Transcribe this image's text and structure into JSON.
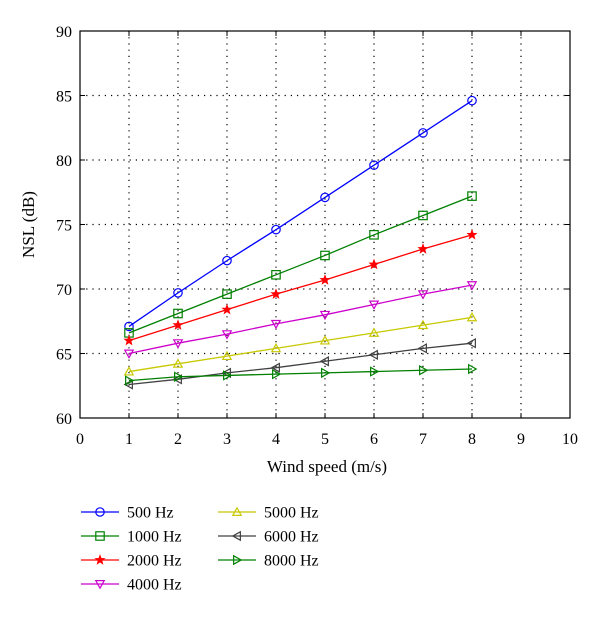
{
  "chart_data": {
    "type": "line",
    "xlabel": "Wind speed (m/s)",
    "ylabel": "NSL (dB)",
    "xlim": [
      0,
      10
    ],
    "ylim": [
      60,
      90
    ],
    "xticks": [
      0,
      1,
      2,
      3,
      4,
      5,
      6,
      7,
      8,
      9,
      10
    ],
    "yticks": [
      60,
      65,
      70,
      75,
      80,
      85,
      90
    ],
    "grid": "dotted",
    "legend_position": "bottom",
    "x": [
      1,
      2,
      3,
      4,
      5,
      6,
      7,
      8
    ],
    "series": [
      {
        "name": "500 Hz",
        "color": "#0000ff",
        "marker": "circle",
        "values": [
          67.1,
          69.7,
          72.2,
          74.6,
          77.1,
          79.6,
          82.1,
          84.6
        ]
      },
      {
        "name": "1000 Hz",
        "color": "#008000",
        "marker": "square",
        "values": [
          66.6,
          68.1,
          69.6,
          71.1,
          72.6,
          74.2,
          75.7,
          77.2
        ]
      },
      {
        "name": "2000 Hz",
        "color": "#ff0000",
        "marker": "star",
        "values": [
          66.0,
          67.2,
          68.4,
          69.6,
          70.7,
          71.9,
          73.1,
          74.2
        ]
      },
      {
        "name": "4000 Hz",
        "color": "#cc00cc",
        "marker": "triangle-down",
        "values": [
          65.0,
          65.8,
          66.5,
          67.3,
          68.0,
          68.8,
          69.6,
          70.3
        ]
      },
      {
        "name": "5000 Hz",
        "color": "#c8c800",
        "marker": "triangle-up",
        "values": [
          63.6,
          64.2,
          64.8,
          65.4,
          66.0,
          66.6,
          67.2,
          67.8
        ]
      },
      {
        "name": "6000 Hz",
        "color": "#404040",
        "marker": "triangle-left",
        "values": [
          62.6,
          63.0,
          63.5,
          63.9,
          64.4,
          64.9,
          65.4,
          65.8
        ]
      },
      {
        "name": "8000 Hz",
        "color": "#008000",
        "marker": "triangle-right",
        "values": [
          62.9,
          63.2,
          63.3,
          63.4,
          63.5,
          63.6,
          63.7,
          63.8
        ]
      }
    ]
  }
}
